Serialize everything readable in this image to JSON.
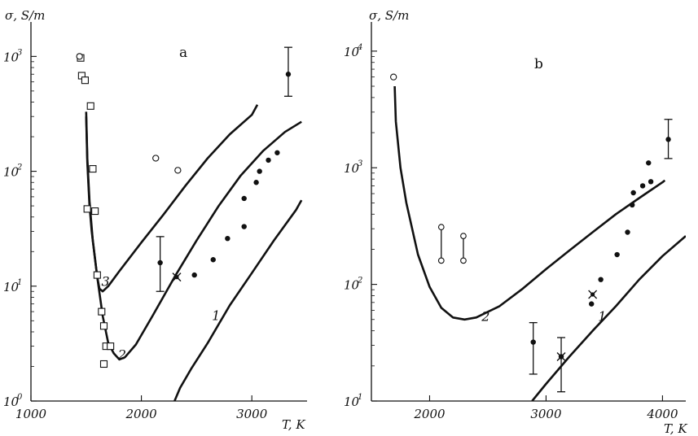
{
  "chart_data": [
    {
      "type": "line",
      "panel_label": "a",
      "ylabel": "σ, S/m",
      "xlabel": "T, K",
      "xlim": [
        1000,
        3500
      ],
      "ylim_log10": [
        0,
        3.3
      ],
      "y_scale": "log",
      "x_ticks": [
        "1000",
        "2000",
        "3000"
      ],
      "y_ticks": [
        {
          "base": "10",
          "exp": "0"
        },
        {
          "base": "10",
          "exp": "1"
        },
        {
          "base": "10",
          "exp": "2"
        },
        {
          "base": "10",
          "exp": "3"
        }
      ],
      "series": [
        {
          "name": "1",
          "style": "curve",
          "points": [
            [
              2300,
              1.0
            ],
            [
              2350,
              1.3
            ],
            [
              2450,
              1.9
            ],
            [
              2600,
              3.2
            ],
            [
              2800,
              6.8
            ],
            [
              3000,
              13
            ],
            [
              3200,
              25
            ],
            [
              3400,
              46
            ],
            [
              3450,
              56
            ]
          ]
        },
        {
          "name": "2",
          "style": "curve",
          "points": [
            [
              1500,
              300
            ],
            [
              1510,
              120
            ],
            [
              1530,
              50
            ],
            [
              1550,
              30
            ],
            [
              1600,
              12
            ],
            [
              1650,
              5.5
            ],
            [
              1700,
              3.2
            ],
            [
              1750,
              2.6
            ],
            [
              1800,
              2.3
            ],
            [
              1850,
              2.4
            ],
            [
              1950,
              3.1
            ],
            [
              2100,
              5.5
            ],
            [
              2300,
              12
            ],
            [
              2500,
              25
            ],
            [
              2700,
              50
            ],
            [
              2900,
              92
            ],
            [
              3100,
              150
            ],
            [
              3300,
              220
            ],
            [
              3450,
              270
            ]
          ]
        },
        {
          "name": "3",
          "style": "curve",
          "points": [
            [
              1500,
              330
            ],
            [
              1510,
              130
            ],
            [
              1530,
              55
            ],
            [
              1560,
              25
            ],
            [
              1600,
              12
            ],
            [
              1620,
              9.5
            ],
            [
              1650,
              9.0
            ],
            [
              1700,
              10
            ],
            [
              1800,
              13.5
            ],
            [
              2000,
              24
            ],
            [
              2200,
              42
            ],
            [
              2400,
              75
            ],
            [
              2600,
              130
            ],
            [
              2800,
              210
            ],
            [
              3000,
              310
            ],
            [
              3050,
              380
            ]
          ]
        }
      ],
      "markers": {
        "open_squares": [
          [
            1450,
            970
          ],
          [
            1460,
            680
          ],
          [
            1490,
            620
          ],
          [
            1540,
            370
          ],
          [
            1560,
            105
          ],
          [
            1580,
            45
          ],
          [
            1600,
            12.5
          ],
          [
            1640,
            6
          ],
          [
            1660,
            4.5
          ],
          [
            1680,
            3
          ],
          [
            1720,
            3
          ],
          [
            1660,
            2.1
          ],
          [
            1510,
            47
          ]
        ],
        "open_circles": [
          [
            1440,
            1000
          ],
          [
            2130,
            130
          ],
          [
            2330,
            102
          ]
        ],
        "filled_circles": [
          [
            2480,
            12.5
          ],
          [
            2650,
            17
          ],
          [
            2780,
            26
          ],
          [
            2930,
            33
          ],
          [
            2930,
            58
          ],
          [
            3040,
            80
          ],
          [
            3070,
            100
          ],
          [
            3150,
            125
          ],
          [
            3230,
            145
          ]
        ],
        "cross": [
          [
            2320,
            12
          ]
        ],
        "error_bars": [
          {
            "x": 2170,
            "y": 16,
            "ylo": 9,
            "yhi": 27
          },
          {
            "x": 3330,
            "y": 700,
            "ylo": 450,
            "yhi": 1200
          }
        ]
      }
    },
    {
      "type": "line",
      "panel_label": "b",
      "ylabel": "σ, S/m",
      "xlabel": "T, K",
      "xlim": [
        1500,
        4200
      ],
      "ylim_log10": [
        1,
        4.25
      ],
      "y_scale": "log",
      "x_ticks": [
        "2000",
        "3000",
        "4000"
      ],
      "y_ticks": [
        {
          "base": "10",
          "exp": "1"
        },
        {
          "base": "10",
          "exp": "2"
        },
        {
          "base": "10",
          "exp": "3"
        },
        {
          "base": "10",
          "exp": "4"
        }
      ],
      "series": [
        {
          "name": "1",
          "style": "curve",
          "points": [
            [
              2880,
              10
            ],
            [
              3000,
              14
            ],
            [
              3200,
              24
            ],
            [
              3400,
              40
            ],
            [
              3600,
              65
            ],
            [
              3800,
              110
            ],
            [
              4000,
              175
            ],
            [
              4200,
              260
            ]
          ]
        },
        {
          "name": "2",
          "style": "curve",
          "points": [
            [
              1700,
              5000
            ],
            [
              1710,
              2500
            ],
            [
              1750,
              1000
            ],
            [
              1800,
              500
            ],
            [
              1900,
              180
            ],
            [
              2000,
              95
            ],
            [
              2100,
              63
            ],
            [
              2200,
              52
            ],
            [
              2300,
              50
            ],
            [
              2400,
              52
            ],
            [
              2600,
              65
            ],
            [
              2800,
              92
            ],
            [
              3000,
              135
            ],
            [
              3200,
              195
            ],
            [
              3400,
              280
            ],
            [
              3600,
              400
            ],
            [
              3800,
              550
            ],
            [
              4000,
              750
            ],
            [
              4020,
              780
            ]
          ]
        }
      ],
      "markers": {
        "open_circles": [
          [
            1690,
            6000
          ]
        ],
        "filled_circles": [
          [
            3390,
            68
          ],
          [
            3470,
            110
          ],
          [
            3610,
            180
          ],
          [
            3700,
            280
          ],
          [
            3740,
            480
          ],
          [
            3750,
            610
          ],
          [
            3830,
            700
          ],
          [
            3900,
            760
          ],
          [
            3880,
            1100
          ]
        ],
        "cross": [
          [
            3400,
            82
          ],
          [
            3130,
            24
          ]
        ],
        "error_bars": [
          {
            "x": 2890,
            "y": 32,
            "ylo": 17,
            "yhi": 47
          },
          {
            "x": 3130,
            "y": 24,
            "ylo": 12,
            "yhi": 35
          },
          {
            "x": 4050,
            "y": 1750,
            "ylo": 1200,
            "yhi": 2600
          }
        ],
        "range_bars": [
          {
            "x": 2100,
            "ylo": 160,
            "yhi": 310
          },
          {
            "x": 2290,
            "ylo": 160,
            "yhi": 260
          }
        ]
      }
    }
  ]
}
